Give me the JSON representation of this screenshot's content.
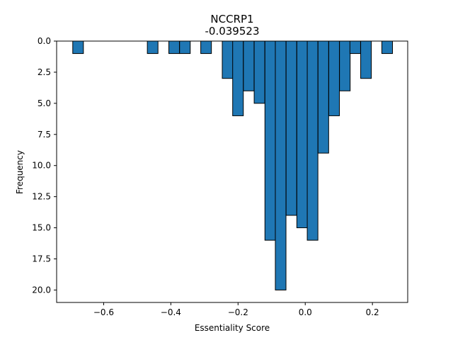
{
  "chart_data": {
    "type": "bar",
    "title": "NCCRP1",
    "subtitle": "-0.039523",
    "xlabel": "Essentiality Score",
    "ylabel": "Frequency",
    "xlim": [
      -0.74,
      0.305
    ],
    "ylim": [
      0,
      21
    ],
    "y_inverted": true,
    "bin_width": 0.0317,
    "xticks": [
      -0.6,
      -0.4,
      -0.2,
      0.0,
      0.2
    ],
    "xtick_labels": [
      "−0.6",
      "−0.4",
      "−0.2",
      "0.0",
      "0.2"
    ],
    "yticks": [
      0,
      2.5,
      5,
      7.5,
      10,
      12.5,
      15,
      17.5,
      20
    ],
    "ytick_labels": [
      "0.0",
      "2.5",
      "5.0",
      "7.5",
      "10.0",
      "12.5",
      "15.0",
      "17.5",
      "20.0"
    ],
    "bins": [
      {
        "x": -0.692,
        "value": 1
      },
      {
        "x": -0.47,
        "value": 1
      },
      {
        "x": -0.406,
        "value": 1
      },
      {
        "x": -0.374,
        "value": 1
      },
      {
        "x": -0.311,
        "value": 1
      },
      {
        "x": -0.247,
        "value": 3
      },
      {
        "x": -0.216,
        "value": 6
      },
      {
        "x": -0.184,
        "value": 4
      },
      {
        "x": -0.152,
        "value": 5
      },
      {
        "x": -0.12,
        "value": 16
      },
      {
        "x": -0.089,
        "value": 20
      },
      {
        "x": -0.057,
        "value": 14
      },
      {
        "x": -0.025,
        "value": 15
      },
      {
        "x": 0.006,
        "value": 16
      },
      {
        "x": 0.038,
        "value": 9
      },
      {
        "x": 0.07,
        "value": 6
      },
      {
        "x": 0.102,
        "value": 4
      },
      {
        "x": 0.133,
        "value": 1
      },
      {
        "x": 0.165,
        "value": 3
      },
      {
        "x": 0.228,
        "value": 1
      }
    ]
  }
}
